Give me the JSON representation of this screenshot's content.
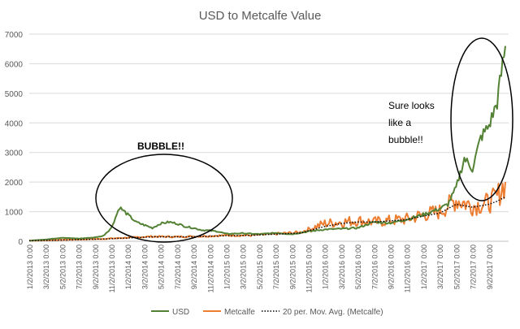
{
  "chart_data": {
    "type": "line",
    "title": "USD to Metcalfe Value",
    "xlabel": "",
    "ylabel": "",
    "ylim": [
      0,
      7000
    ],
    "y_ticks": [
      0,
      1000,
      2000,
      3000,
      4000,
      5000,
      6000,
      7000
    ],
    "grid": "horizontal",
    "legend_position": "bottom",
    "x_tick_labels": [
      "1/2/2013 0:00",
      "3/2/2013 0:00",
      "5/2/2013 0:00",
      "7/2/2013 0:00",
      "9/2/2013 0:00",
      "11/2/2013 0:00",
      "1/2/2014 0:00",
      "3/2/2014 0:00",
      "5/2/2014 0:00",
      "7/2/2014 0:00",
      "9/2/2014 0:00",
      "11/2/2014 0:00",
      "1/2/2015 0:00",
      "3/2/2015 0:00",
      "5/2/2015 0:00",
      "7/2/2015 0:00",
      "9/2/2015 0:00",
      "11/2/2015 0:00",
      "1/2/2016 0:00",
      "3/2/2016 0:00",
      "5/2/2016 0:00",
      "7/2/2016 0:00",
      "9/2/2016 0:00",
      "11/2/2016 0:00",
      "1/2/2017 0:00",
      "3/2/2017 0:00",
      "5/2/2017 0:00",
      "7/2/2017 0:00",
      "9/2/2017 0:00"
    ],
    "series": [
      {
        "name": "USD",
        "color": "#548235",
        "style": "solid",
        "x": [
          "2013-01",
          "2013-03",
          "2013-05",
          "2013-07",
          "2013-09",
          "2013-10",
          "2013-11",
          "2013-12",
          "2014-01",
          "2014-02",
          "2014-03",
          "2014-04",
          "2014-05",
          "2014-06",
          "2014-07",
          "2014-08",
          "2014-09",
          "2014-10",
          "2014-11",
          "2014-12",
          "2015-01",
          "2015-03",
          "2015-05",
          "2015-07",
          "2015-09",
          "2015-11",
          "2016-01",
          "2016-03",
          "2016-05",
          "2016-07",
          "2016-09",
          "2016-11",
          "2017-01",
          "2017-02",
          "2017-03",
          "2017-04",
          "2017-05",
          "2017-06",
          "2017-07",
          "2017-08",
          "2017-09",
          "2017-10",
          "2017-11"
        ],
        "values": [
          20,
          60,
          120,
          90,
          130,
          180,
          450,
          1150,
          900,
          650,
          550,
          450,
          600,
          650,
          600,
          500,
          450,
          380,
          360,
          330,
          250,
          270,
          240,
          280,
          240,
          330,
          400,
          420,
          450,
          650,
          620,
          740,
          900,
          1000,
          1100,
          1250,
          1800,
          2800,
          2450,
          3500,
          3900,
          4700,
          6600
        ]
      },
      {
        "name": "Metcalfe",
        "color": "#ed7d31",
        "style": "solid",
        "x": [
          "2013-01",
          "2013-04",
          "2013-07",
          "2013-10",
          "2014-01",
          "2014-04",
          "2014-07",
          "2014-10",
          "2015-01",
          "2015-04",
          "2015-07",
          "2015-10",
          "2016-01",
          "2016-03",
          "2016-05",
          "2016-07",
          "2016-09",
          "2016-11",
          "2017-01",
          "2017-03",
          "2017-05",
          "2017-07",
          "2017-09",
          "2017-10",
          "2017-11"
        ],
        "values": [
          20,
          40,
          60,
          80,
          120,
          160,
          150,
          170,
          200,
          200,
          250,
          300,
          600,
          650,
          700,
          650,
          700,
          750,
          900,
          1000,
          1400,
          1200,
          1300,
          1500,
          2000
        ]
      },
      {
        "name": "20 per. Mov. Avg. (Metcalfe)",
        "color": "#000000",
        "style": "dotted",
        "x": [
          "2013-01",
          "2013-04",
          "2013-07",
          "2013-10",
          "2014-01",
          "2014-04",
          "2014-07",
          "2014-10",
          "2015-01",
          "2015-04",
          "2015-07",
          "2015-10",
          "2016-01",
          "2016-03",
          "2016-05",
          "2016-07",
          "2016-09",
          "2016-11",
          "2017-01",
          "2017-03",
          "2017-05",
          "2017-07",
          "2017-09",
          "2017-10",
          "2017-11"
        ],
        "values": [
          20,
          35,
          55,
          75,
          110,
          150,
          150,
          160,
          190,
          200,
          240,
          280,
          500,
          600,
          650,
          650,
          690,
          730,
          850,
          950,
          1250,
          1150,
          1250,
          1350,
          1500
        ]
      }
    ],
    "annotations": [
      {
        "text": "BUBBLE!!",
        "bold": true
      },
      {
        "text_lines": [
          "Sure looks",
          "like a",
          "bubble!!"
        ],
        "bold": false
      }
    ]
  }
}
